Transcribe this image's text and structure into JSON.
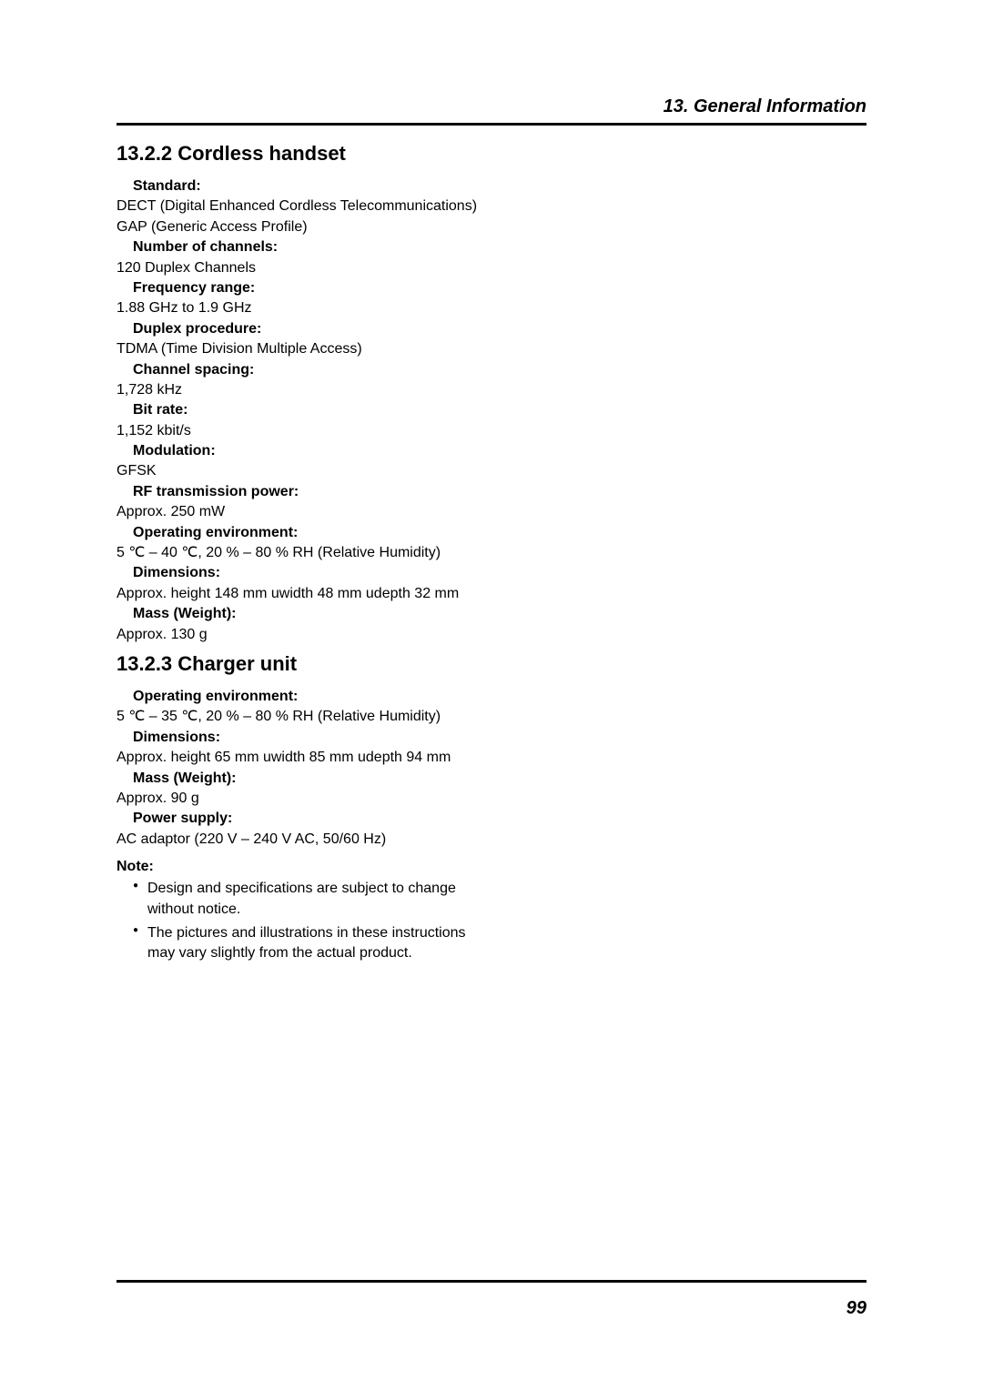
{
  "header": {
    "title": "13. General Information"
  },
  "sections": {
    "handset": {
      "heading": "13.2.2 Cordless handset",
      "specs": {
        "standard_label": "Standard:",
        "standard_value_1": "DECT (Digital Enhanced Cordless Telecommunications)",
        "standard_value_2": "GAP (Generic Access Profile)",
        "channels_label": "Number of channels:",
        "channels_value": "120 Duplex Channels",
        "freq_label": "Frequency range:",
        "freq_value": "1.88 GHz to 1.9 GHz",
        "duplex_label": "Duplex procedure:",
        "duplex_value": "TDMA (Time Division Multiple Access)",
        "spacing_label": "Channel spacing:",
        "spacing_value": "1,728 kHz",
        "bitrate_label": "Bit rate:",
        "bitrate_value": "1,152 kbit/s",
        "modulation_label": "Modulation:",
        "modulation_value": "GFSK",
        "rfpower_label": "RF transmission power:",
        "rfpower_value": "Approx. 250 mW",
        "openv_label": "Operating environment:",
        "openv_value": "5 ℃ – 40 ℃, 20 % – 80 % RH (Relative Humidity)",
        "dims_label": "Dimensions:",
        "dims_value": "Approx. height 148 mm  uwidth 48 mm  udepth 32 mm",
        "mass_label": "Mass (Weight):",
        "mass_value": "Approx. 130 g"
      }
    },
    "charger": {
      "heading": "13.2.3 Charger unit",
      "specs": {
        "openv_label": "Operating environment:",
        "openv_value": "5 ℃ – 35 ℃, 20 % – 80 % RH (Relative Humidity)",
        "dims_label": "Dimensions:",
        "dims_value": "Approx. height 65 mm  uwidth 85 mm  udepth 94 mm",
        "mass_label": "Mass (Weight):",
        "mass_value": "Approx. 90 g",
        "power_label": "Power supply:",
        "power_value": "AC adaptor (220 V – 240 V AC, 50/60 Hz)"
      }
    }
  },
  "note": {
    "heading": "Note:",
    "items": {
      "item1": "Design and specifications are subject to change without notice.",
      "item2": "The pictures and illustrations in these instructions may vary slightly from the actual product."
    }
  },
  "footer": {
    "page_number": "99"
  }
}
